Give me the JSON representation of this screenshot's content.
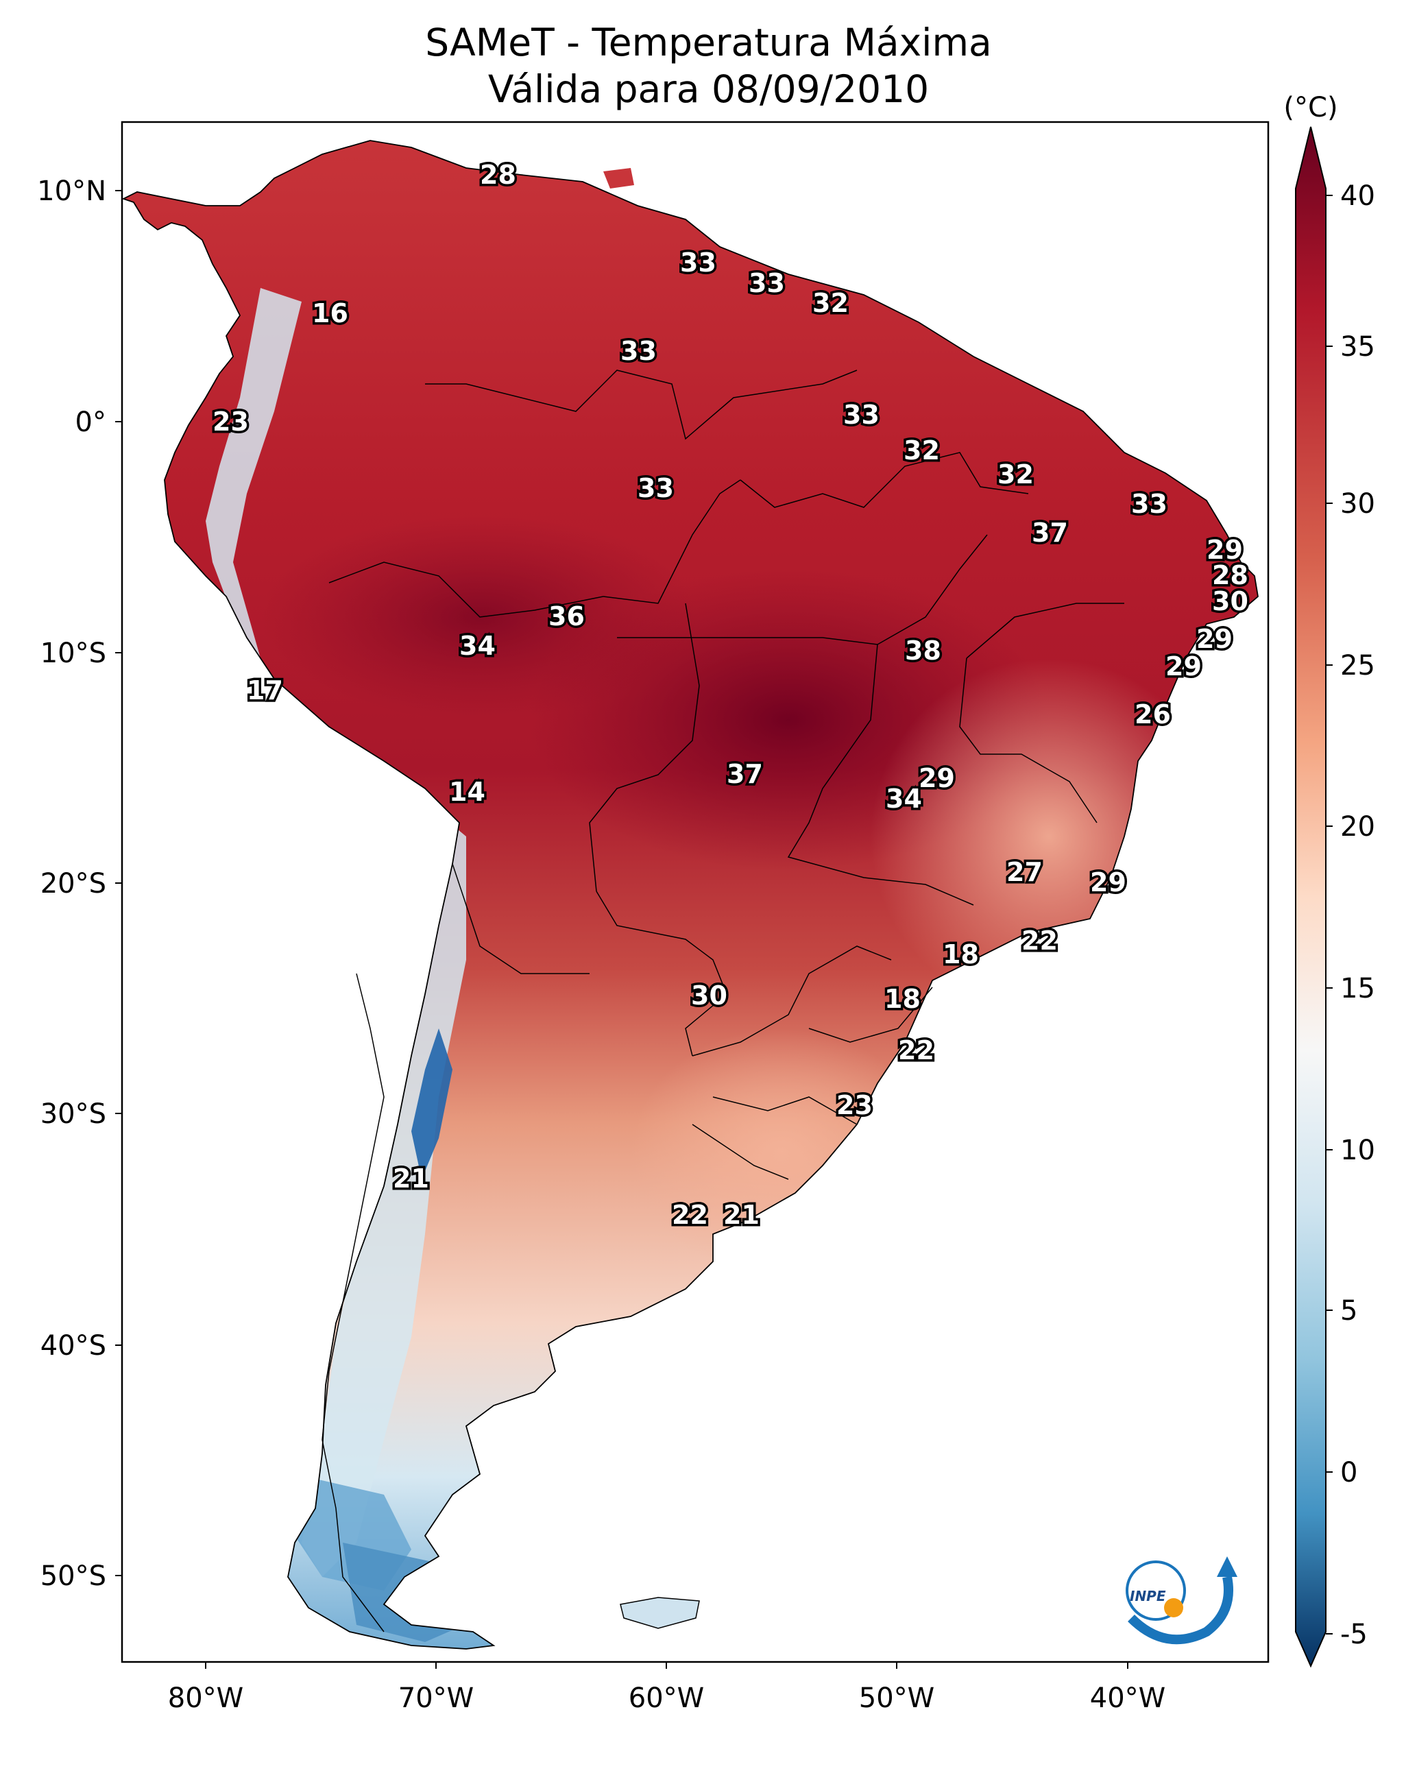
{
  "title": {
    "line1": "SAMeT - Temperatura Máxima",
    "line2": "Válida para 08/09/2010"
  },
  "map": {
    "lat_ticks": [
      "10°N",
      "0°",
      "10°S",
      "20°S",
      "30°S",
      "40°S",
      "50°S"
    ],
    "lon_ticks": [
      "80°W",
      "70°W",
      "60°W",
      "50°W",
      "40°W"
    ],
    "contour_labels": [
      "28",
      "16",
      "33",
      "33",
      "32",
      "33",
      "23",
      "33",
      "33",
      "32",
      "32",
      "33",
      "37",
      "29",
      "28",
      "30",
      "36",
      "34",
      "38",
      "29",
      "29",
      "17",
      "26",
      "14",
      "37",
      "29",
      "34",
      "27",
      "29",
      "22",
      "18",
      "30",
      "18",
      "22",
      "23",
      "21",
      "22",
      "21"
    ],
    "logo_text": "INPE",
    "colors": {
      "hot": "#67001f",
      "warm": "#d6604d",
      "neutral": "#f7f7f7",
      "cool": "#4393c3",
      "cold": "#053061",
      "ocean": "#ffffff",
      "border": "#000000"
    }
  },
  "colorbar": {
    "unit": "(°C)",
    "ticks": [
      "40",
      "35",
      "30",
      "25",
      "20",
      "15",
      "10",
      "5",
      "0",
      "-5"
    ],
    "min": -5,
    "max": 40
  }
}
